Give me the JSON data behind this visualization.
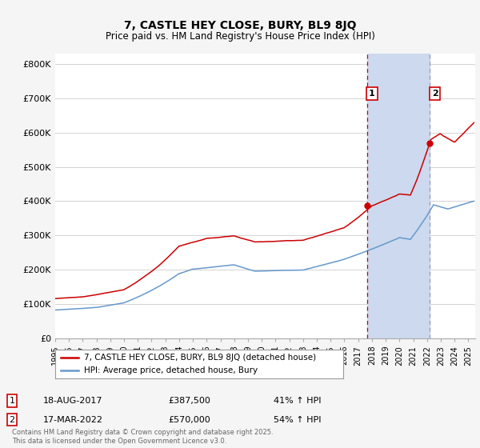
{
  "title": "7, CASTLE HEY CLOSE, BURY, BL9 8JQ",
  "subtitle": "Price paid vs. HM Land Registry's House Price Index (HPI)",
  "ylabel_ticks": [
    "£0",
    "£100K",
    "£200K",
    "£300K",
    "£400K",
    "£500K",
    "£600K",
    "£700K",
    "£800K"
  ],
  "ytick_values": [
    0,
    100000,
    200000,
    300000,
    400000,
    500000,
    600000,
    700000,
    800000
  ],
  "ylim": [
    0,
    830000
  ],
  "xlim_start": 1995.0,
  "xlim_end": 2025.5,
  "sale1_date": 2017.63,
  "sale1_price": 387500,
  "sale1_label": "18-AUG-2017",
  "sale1_pct": "41% ↑ HPI",
  "sale1_price_str": "£387,500",
  "sale2_date": 2022.21,
  "sale2_price": 570000,
  "sale2_label": "17-MAR-2022",
  "sale2_pct": "54% ↑ HPI",
  "sale2_price_str": "£570,000",
  "red_line_color": "#cc0000",
  "blue_line_color": "#6699cc",
  "vline1_color": "#cc0000",
  "vline2_color": "#9999bb",
  "span_color": "#ccd9ee",
  "grid_color": "#cccccc",
  "background_color": "#f5f5f5",
  "plot_bg_color": "#ffffff",
  "legend_label_red": "7, CASTLE HEY CLOSE, BURY, BL9 8JQ (detached house)",
  "legend_label_blue": "HPI: Average price, detached house, Bury",
  "footnote": "Contains HM Land Registry data © Crown copyright and database right 2025.\nThis data is licensed under the Open Government Licence v3.0."
}
